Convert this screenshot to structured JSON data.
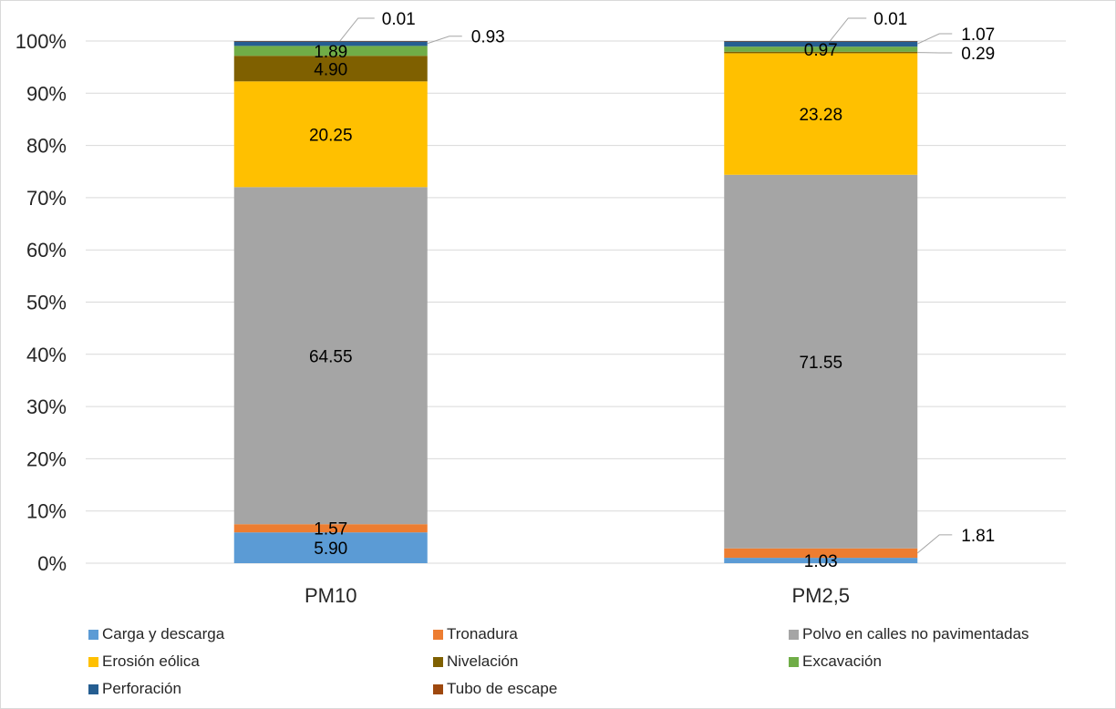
{
  "chart_data": {
    "type": "bar",
    "stacked": "percent",
    "categories": [
      "PM10",
      "PM2,5"
    ],
    "ylim": [
      0,
      100
    ],
    "yticks": [
      "0%",
      "10%",
      "20%",
      "30%",
      "40%",
      "50%",
      "60%",
      "70%",
      "80%",
      "90%",
      "100%"
    ],
    "grid": true,
    "legend_position": "bottom",
    "series": [
      {
        "name": "Carga y descarga",
        "color": "#5b9bd5",
        "values": [
          5.9,
          1.03
        ],
        "labels": [
          "5.90",
          "1.03"
        ]
      },
      {
        "name": "Tronadura",
        "color": "#ed7d31",
        "values": [
          1.57,
          1.81
        ],
        "labels": [
          "1.57",
          "1.81"
        ]
      },
      {
        "name": "Polvo en calles no pavimentadas",
        "color": "#a5a5a5",
        "values": [
          64.55,
          71.55
        ],
        "labels": [
          "64.55",
          "71.55"
        ]
      },
      {
        "name": "Erosión eólica",
        "color": "#ffc000",
        "values": [
          20.25,
          23.28
        ],
        "labels": [
          "20.25",
          "23.28"
        ]
      },
      {
        "name": "Nivelación",
        "color": "#7f6000",
        "values": [
          4.9,
          0.29
        ],
        "labels": [
          "4.90",
          "0.29"
        ]
      },
      {
        "name": "Excavación",
        "color": "#70ad47",
        "values": [
          1.89,
          0.97
        ],
        "labels": [
          "1.89",
          "0.97"
        ]
      },
      {
        "name": "Perforación",
        "color": "#255e91",
        "values": [
          0.93,
          1.07
        ],
        "labels": [
          "0.93",
          "1.07"
        ]
      },
      {
        "name": "Tubo de escape",
        "color": "#9e480e",
        "values": [
          0.01,
          0.01
        ],
        "labels": [
          "0.01",
          "0.01"
        ]
      }
    ]
  }
}
